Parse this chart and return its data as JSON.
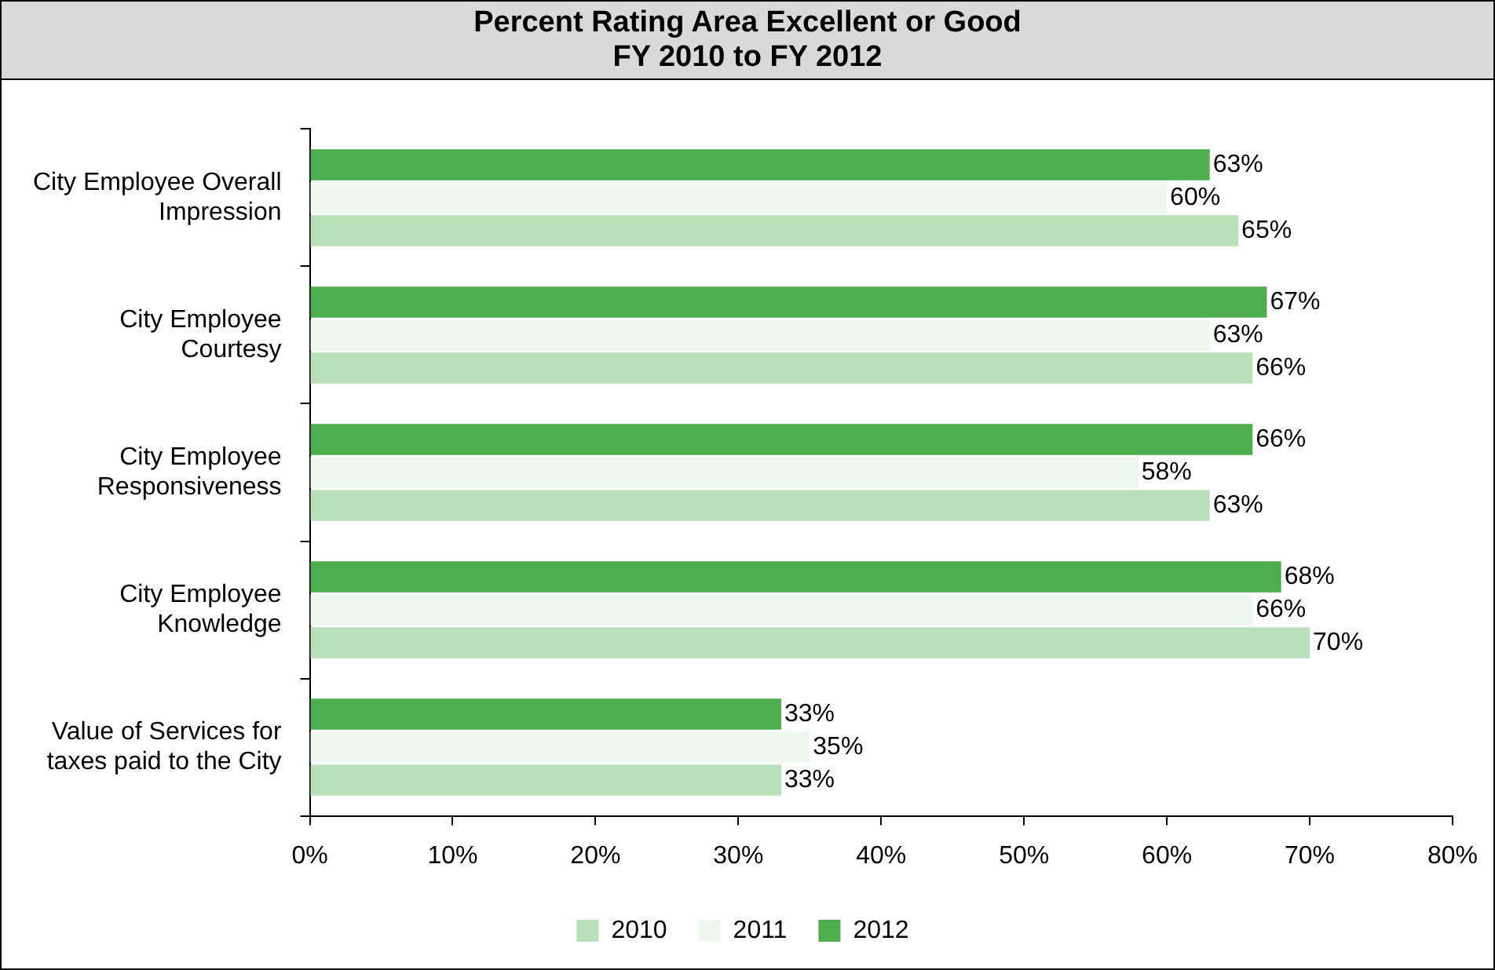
{
  "chart_data": {
    "type": "bar",
    "orientation": "horizontal",
    "title": "Percent Rating Area Excellent or Good",
    "subtitle": "FY 2010 to FY 2012",
    "categories": [
      "City Employee Overall Impression",
      "City Employee Courtesy",
      "City Employee Responsiveness",
      "City Employee Knowledge",
      "Value of Services for taxes paid to the City"
    ],
    "series": [
      {
        "name": "2010",
        "color": "#b9e0b9",
        "values": [
          65,
          66,
          63,
          70,
          33
        ],
        "value_labels": [
          "65%",
          "66%",
          "63%",
          "70%",
          "33%"
        ]
      },
      {
        "name": "2011",
        "color": "#eef8ee",
        "values": [
          60,
          63,
          58,
          66,
          35
        ],
        "value_labels": [
          "60%",
          "63%",
          "58%",
          "66%",
          "35%"
        ]
      },
      {
        "name": "2012",
        "color": "#4cae4c",
        "values": [
          63,
          67,
          66,
          68,
          33
        ],
        "value_labels": [
          "63%",
          "67%",
          "66%",
          "68%",
          "33%"
        ]
      }
    ],
    "xlim": [
      0,
      80
    ],
    "xticks": [
      {
        "value": 0,
        "label": "0%"
      },
      {
        "value": 10,
        "label": "10%"
      },
      {
        "value": 20,
        "label": "20%"
      },
      {
        "value": 30,
        "label": "30%"
      },
      {
        "value": 40,
        "label": "40%"
      },
      {
        "value": 50,
        "label": "50%"
      },
      {
        "value": 60,
        "label": "60%"
      },
      {
        "value": 70,
        "label": "70%"
      },
      {
        "value": 80,
        "label": "80%"
      }
    ],
    "legend": "bottom"
  }
}
